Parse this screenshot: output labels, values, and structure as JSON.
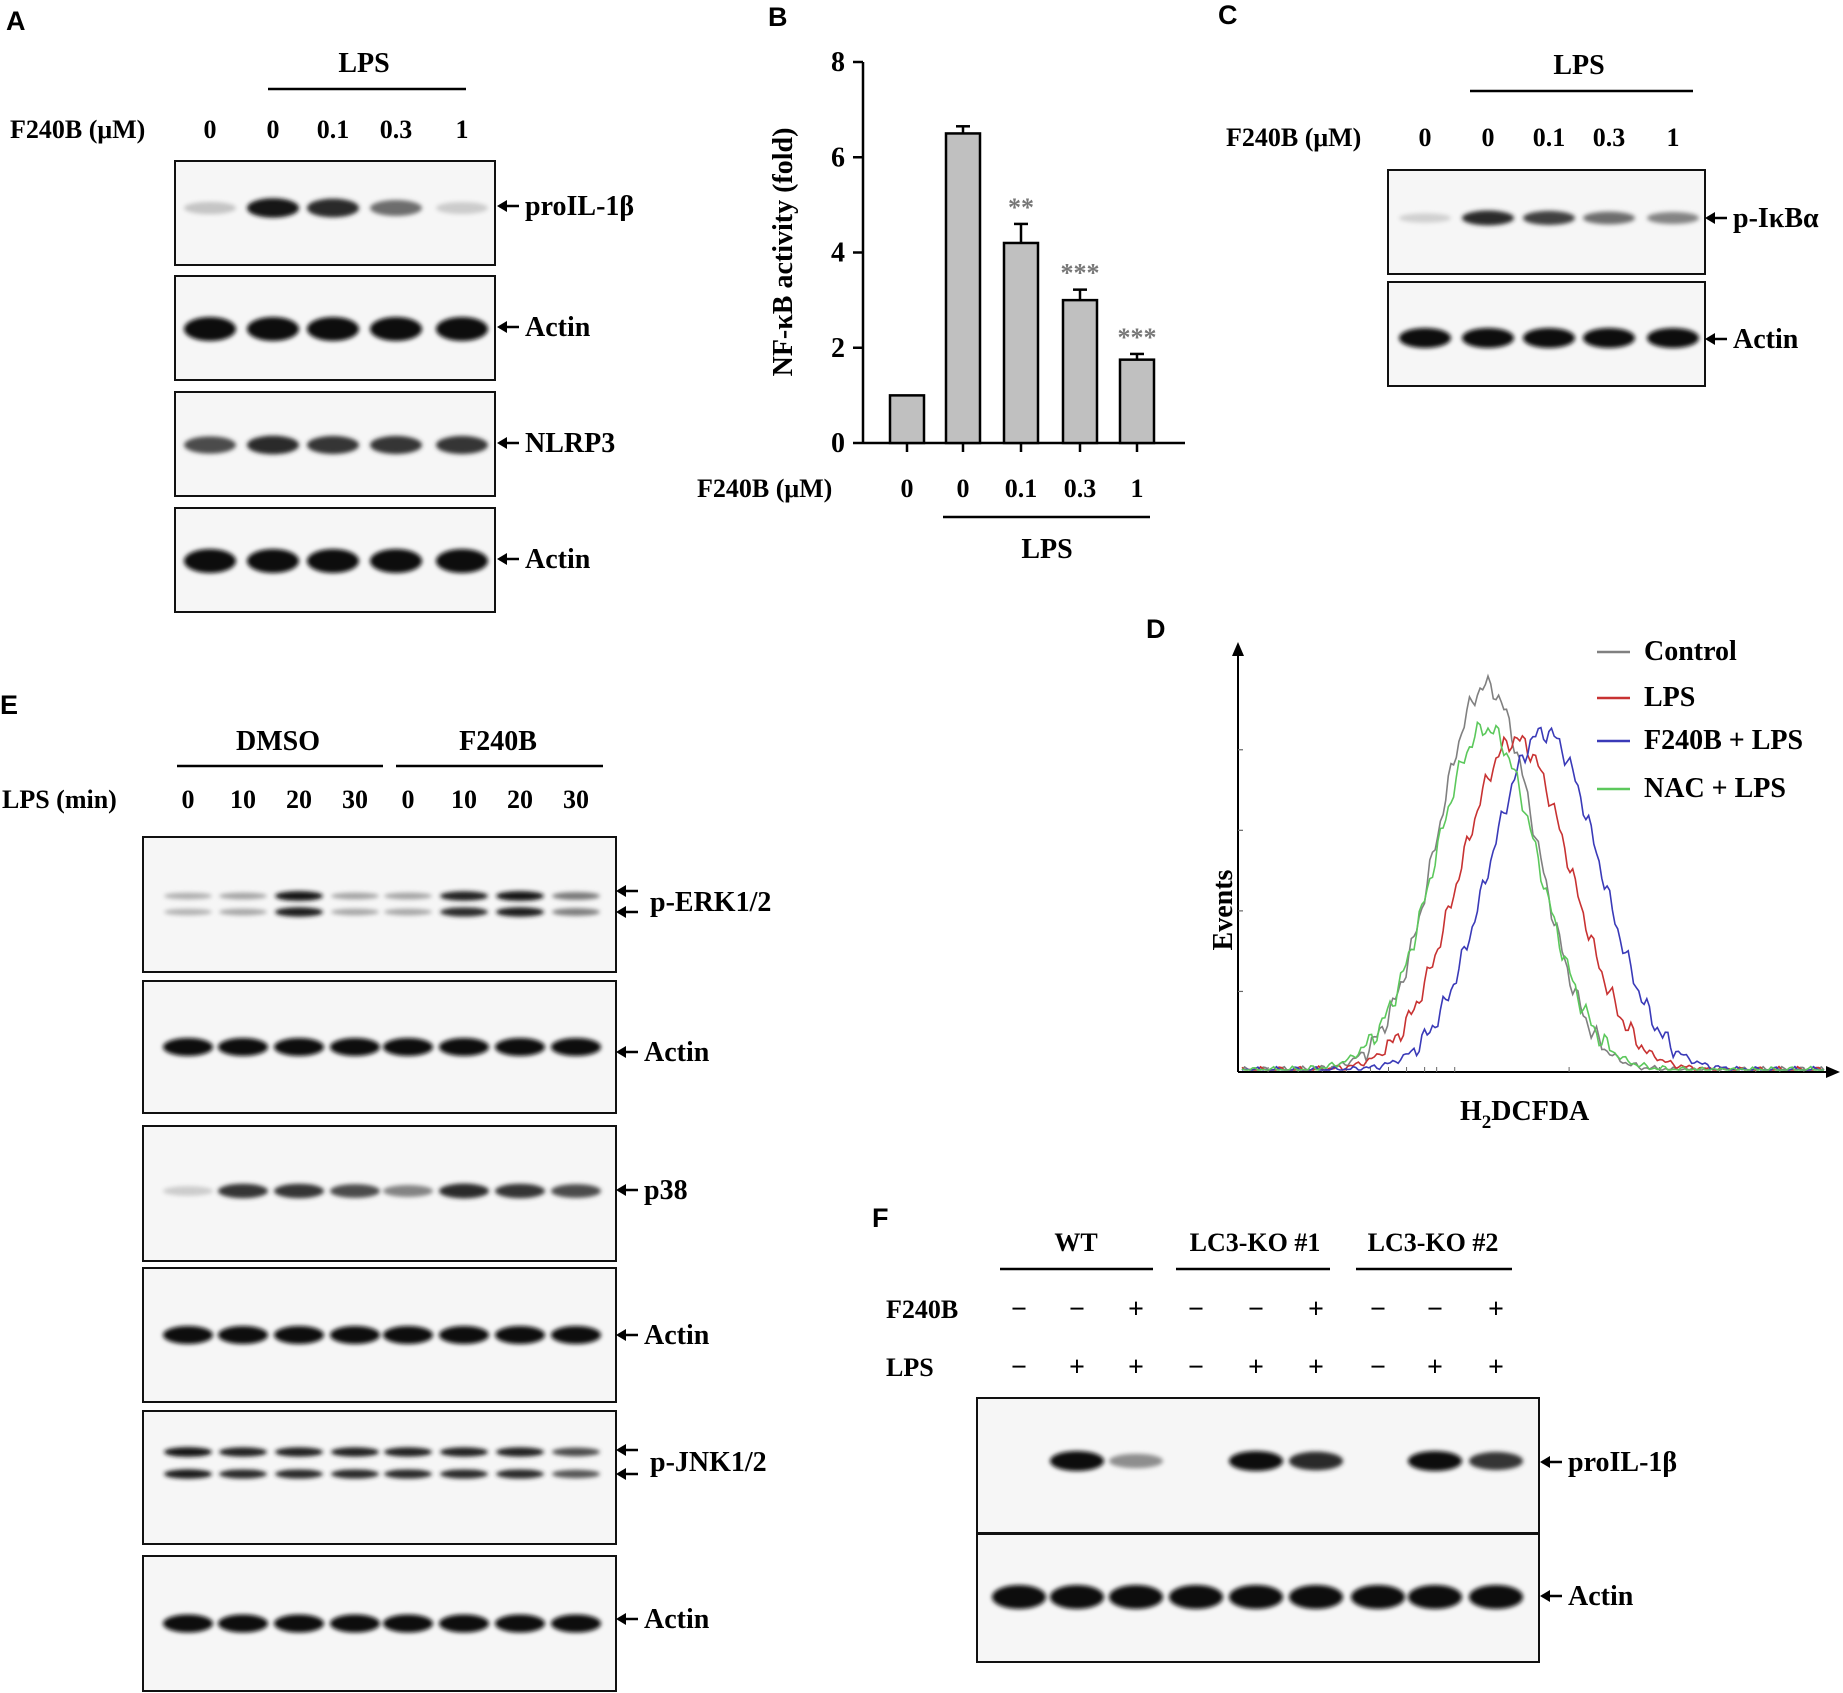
{
  "panels": {
    "A": {
      "letter": "A",
      "treatment": "LPS",
      "row_label": "F240B (μM)",
      "doses": [
        "0",
        "0",
        "0.1",
        "0.3",
        "1"
      ],
      "blots": [
        {
          "label": "proIL-1β",
          "band_intensity": [
            0.15,
            0.95,
            0.85,
            0.55,
            0.12
          ]
        },
        {
          "label": "Actin",
          "band_intensity": [
            1,
            1,
            1,
            1,
            1
          ]
        },
        {
          "label": "NLRP3",
          "band_intensity": [
            0.7,
            0.85,
            0.8,
            0.8,
            0.8
          ]
        },
        {
          "label": "Actin",
          "band_intensity": [
            1,
            1,
            1,
            1,
            1
          ]
        }
      ]
    },
    "B": {
      "letter": "B",
      "treatment": "LPS",
      "row_label": "F240B (μM)",
      "chart_data": {
        "type": "bar",
        "categories": [
          "0",
          "0",
          "0.1",
          "0.3",
          "1"
        ],
        "values": [
          1.0,
          6.5,
          4.2,
          3.0,
          1.75
        ],
        "errors": [
          0,
          0.15,
          0.4,
          0.22,
          0.12
        ],
        "significance": [
          "",
          "",
          "**",
          "***",
          "***"
        ],
        "ylabel": "NF-κB activity (fold)",
        "ylim": [
          0,
          8
        ],
        "yticks": [
          "0",
          "2",
          "4",
          "6",
          "8"
        ],
        "bar_color": "#c0c0c0"
      }
    },
    "C": {
      "letter": "C",
      "treatment": "LPS",
      "row_label": "F240B (μM)",
      "doses": [
        "0",
        "0",
        "0.1",
        "0.3",
        "1"
      ],
      "blots": [
        {
          "label": "p-IκBα",
          "band_intensity": [
            0.1,
            0.85,
            0.75,
            0.55,
            0.45
          ]
        },
        {
          "label": "Actin",
          "band_intensity": [
            1,
            1,
            1,
            1,
            1
          ]
        }
      ]
    },
    "D": {
      "letter": "D",
      "chart_data": {
        "type": "line",
        "xlabel_main": "H",
        "xlabel_sub": "2",
        "xlabel_rest": "DCFDA",
        "ylabel": "Events",
        "legend_position": "top-right",
        "series": [
          {
            "name": "Control",
            "color": "#808080",
            "peak": 0.42,
            "height": 1.0,
            "width": 0.085
          },
          {
            "name": "LPS",
            "color": "#c83232",
            "peak": 0.47,
            "height": 0.86,
            "width": 0.095
          },
          {
            "name": "F240B + LPS",
            "color": "#3a3ab8",
            "peak": 0.52,
            "height": 0.88,
            "width": 0.095
          },
          {
            "name": "NAC + LPS",
            "color": "#5cc85c",
            "peak": 0.42,
            "height": 0.89,
            "width": 0.09
          }
        ]
      }
    },
    "E": {
      "letter": "E",
      "group1": "DMSO",
      "group2": "F240B",
      "row_label": "LPS (min)",
      "times": [
        "0",
        "10",
        "20",
        "30",
        "0",
        "10",
        "20",
        "30"
      ],
      "blots": [
        {
          "label": "p-ERK1/2",
          "double": true,
          "band_intensity": [
            0.25,
            0.3,
            0.95,
            0.3,
            0.3,
            0.9,
            0.95,
            0.5
          ]
        },
        {
          "label": "Actin",
          "double": false,
          "band_intensity": [
            1,
            1,
            1,
            1,
            1,
            1,
            1,
            1
          ]
        },
        {
          "label": "p38",
          "double": false,
          "band_intensity": [
            0.12,
            0.8,
            0.8,
            0.7,
            0.45,
            0.85,
            0.8,
            0.7
          ]
        },
        {
          "label": "Actin",
          "double": false,
          "band_intensity": [
            1,
            1,
            1,
            1,
            1,
            1,
            1,
            1
          ]
        },
        {
          "label": "p-JNK1/2",
          "double": true,
          "band_intensity": [
            0.95,
            0.9,
            0.9,
            0.9,
            0.9,
            0.9,
            0.9,
            0.7
          ]
        },
        {
          "label": "Actin",
          "double": false,
          "band_intensity": [
            1,
            1,
            1,
            1,
            1,
            1,
            1,
            1
          ]
        }
      ]
    },
    "F": {
      "letter": "F",
      "groups": [
        "WT",
        "LC3-KO #1",
        "LC3-KO #2"
      ],
      "row1_label": "F240B",
      "row2_label": "LPS",
      "f240b_signs": [
        "−",
        "−",
        "+",
        "−",
        "−",
        "+",
        "−",
        "−",
        "+"
      ],
      "lps_signs": [
        "−",
        "+",
        "+",
        "−",
        "+",
        "+",
        "−",
        "+",
        "+"
      ],
      "blots": [
        {
          "label": "proIL-1β",
          "band_intensity": [
            0,
            1,
            0.4,
            0,
            1,
            0.85,
            0,
            1,
            0.8
          ]
        },
        {
          "label": "Actin",
          "band_intensity": [
            1,
            1,
            1,
            1,
            1,
            1,
            1,
            1,
            1
          ]
        }
      ]
    }
  }
}
